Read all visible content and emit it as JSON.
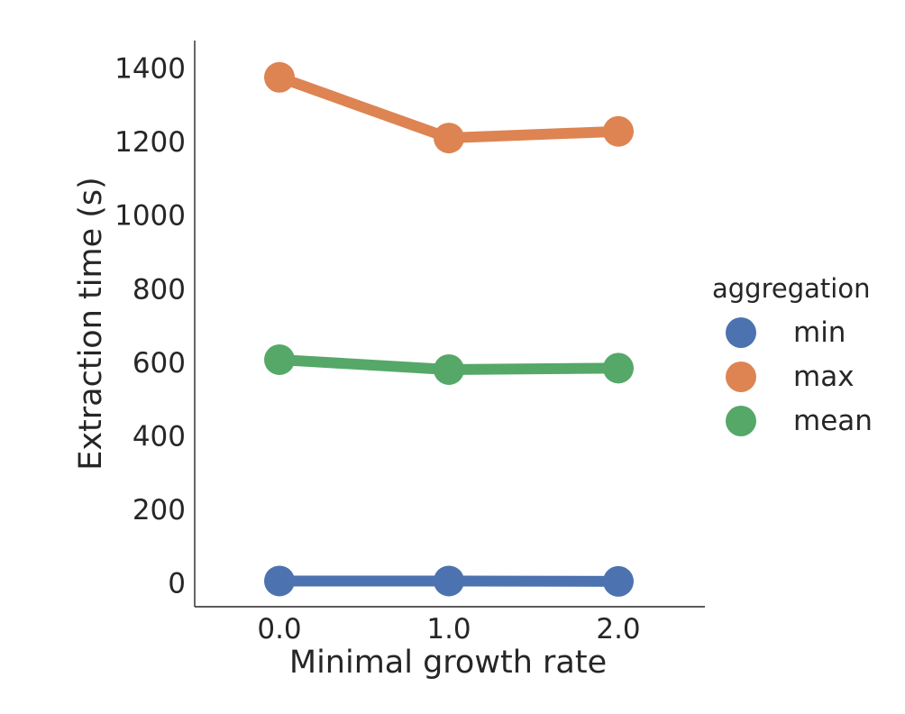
{
  "chart_data": {
    "type": "line",
    "x": [
      "0.0",
      "1.0",
      "2.0"
    ],
    "xlabel": "Minimal growth rate",
    "ylabel": "Extraction time (s)",
    "ylim": [
      -65,
      1475
    ],
    "yticks": [
      0,
      200,
      400,
      600,
      800,
      1000,
      1200,
      1400
    ],
    "grid": false,
    "legend": {
      "title": "aggregation",
      "placement": "right"
    },
    "series": [
      {
        "name": "min",
        "color": "#4c72b0",
        "values": [
          5,
          5,
          4
        ]
      },
      {
        "name": "max",
        "color": "#dd8452",
        "values": [
          1375,
          1210,
          1228
        ]
      },
      {
        "name": "mean",
        "color": "#55a868",
        "values": [
          607,
          580,
          584
        ]
      }
    ]
  }
}
